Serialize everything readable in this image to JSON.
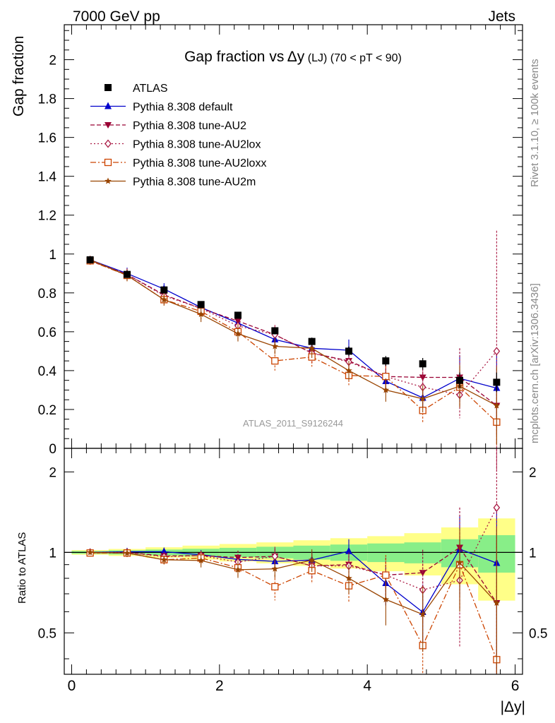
{
  "header": {
    "left": "7000 GeV pp",
    "right": "Jets"
  },
  "side_labels": {
    "rivet": "Rivet 3.1.10, ≥ 100k events",
    "mcplots": "mcplots.cern.ch [arXiv:1306.3436]"
  },
  "chart_data": {
    "type": "line",
    "title_main": "Gap fraction vs",
    "title_var": "Δy",
    "title_tag": "(LJ)",
    "title_range": "(70 < pT <  90)",
    "watermark": "ATLAS_2011_S9126244",
    "xlabel": "|Δy|",
    "ylabel_top": "Gap fraction",
    "ylabel_bottom": "Ratio to ATLAS",
    "xlim": [
      -0.1,
      6.1
    ],
    "top_ylim": [
      0,
      2.18
    ],
    "bottom_ylim": [
      0.35,
      2.45
    ],
    "top_yticks": [
      0,
      0.2,
      0.4,
      0.6,
      0.8,
      1,
      1.2,
      1.4,
      1.6,
      1.8,
      2
    ],
    "top_ytick_labels": [
      "0",
      "0.2",
      "0.4",
      "0.6",
      "0.8",
      "1",
      "1.2",
      "1.4",
      "1.6",
      "1.8",
      "2"
    ],
    "bottom_yticks": [
      0.5,
      1,
      2
    ],
    "bottom_ytick_labels": [
      "0.5",
      "1",
      "2"
    ],
    "xticks": [
      0,
      2,
      4,
      6
    ],
    "xtick_labels": [
      "0",
      "2",
      "4",
      "6"
    ],
    "x": [
      0.25,
      0.75,
      1.25,
      1.75,
      2.25,
      2.75,
      3.25,
      3.75,
      4.25,
      4.75,
      5.25,
      5.75
    ],
    "x_edges": [
      0,
      0.5,
      1,
      1.5,
      2,
      2.5,
      3,
      3.5,
      4,
      4.5,
      5,
      5.5,
      6
    ],
    "reference": {
      "name": "ATLAS",
      "values": [
        0.97,
        0.895,
        0.815,
        0.74,
        0.685,
        0.605,
        0.55,
        0.5,
        0.45,
        0.435,
        0.35,
        0.34
      ],
      "err_stat": [
        0.01,
        0.01,
        0.012,
        0.015,
        0.015,
        0.018,
        0.02,
        0.025,
        0.025,
        0.03,
        0.04,
        0.05
      ],
      "band_stat_rel": [
        0.012,
        0.018,
        0.025,
        0.032,
        0.04,
        0.05,
        0.06,
        0.07,
        0.08,
        0.09,
        0.12,
        0.16
      ],
      "band_tot_rel": [
        0.02,
        0.03,
        0.045,
        0.06,
        0.075,
        0.09,
        0.11,
        0.13,
        0.15,
        0.18,
        0.24,
        0.34
      ]
    },
    "series": [
      {
        "name": "Pythia 8.308 default",
        "color": "#0000cc",
        "dash": "",
        "marker": "triangle-up",
        "values": [
          0.97,
          0.9,
          0.82,
          0.725,
          0.645,
          0.56,
          0.515,
          0.505,
          0.345,
          0.26,
          0.36,
          0.31
        ],
        "errors": [
          0.02,
          0.03,
          0.03,
          0.03,
          0.03,
          0.04,
          0.04,
          0.055,
          0.06,
          0.07,
          0.12,
          0.2
        ]
      },
      {
        "name": "Pythia 8.308 tune-AU2",
        "color": "#990033",
        "dash": "6,3",
        "marker": "triangle-down",
        "values": [
          0.965,
          0.895,
          0.79,
          0.72,
          0.655,
          0.585,
          0.49,
          0.45,
          0.37,
          0.365,
          0.365,
          0.22
        ],
        "errors": [
          0.02,
          0.03,
          0.03,
          0.03,
          0.04,
          0.04,
          0.05,
          0.05,
          0.06,
          0.08,
          0.15,
          0.15
        ]
      },
      {
        "name": "Pythia 8.308 tune-AU2lox",
        "color": "#aa1a44",
        "dash": "2,3",
        "marker": "diamond-open",
        "values": [
          0.97,
          0.895,
          0.785,
          0.72,
          0.63,
          0.585,
          0.49,
          0.445,
          0.37,
          0.315,
          0.275,
          0.5
        ],
        "errors": [
          0.02,
          0.03,
          0.03,
          0.03,
          0.04,
          0.05,
          0.05,
          0.05,
          0.06,
          0.08,
          0.12,
          0.62
        ]
      },
      {
        "name": "Pythia 8.308 tune-AU2loxx",
        "color": "#cc4400",
        "dash": "8,3,2,3",
        "marker": "square-open",
        "values": [
          0.965,
          0.89,
          0.765,
          0.705,
          0.6,
          0.45,
          0.47,
          0.375,
          0.37,
          0.195,
          0.315,
          0.135
        ],
        "errors": [
          0.02,
          0.03,
          0.03,
          0.04,
          0.04,
          0.05,
          0.05,
          0.05,
          0.07,
          0.06,
          0.1,
          0.12
        ]
      },
      {
        "name": "Pythia 8.308 tune-AU2m",
        "color": "#994400",
        "dash": "",
        "marker": "star",
        "values": [
          0.97,
          0.89,
          0.765,
          0.69,
          0.59,
          0.525,
          0.515,
          0.4,
          0.3,
          0.255,
          0.32,
          0.22
        ],
        "errors": [
          0.02,
          0.03,
          0.03,
          0.04,
          0.04,
          0.04,
          0.05,
          0.05,
          0.06,
          0.07,
          0.11,
          0.2
        ]
      }
    ]
  }
}
